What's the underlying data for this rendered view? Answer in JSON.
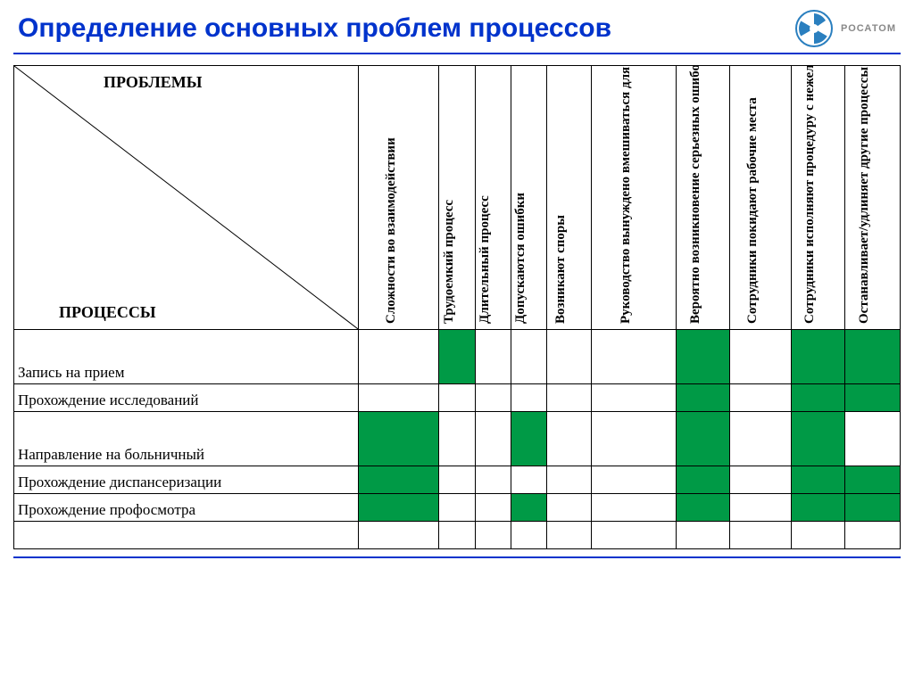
{
  "title": "Определение основных проблем процессов",
  "logo_text": "РОСАТОМ",
  "logo_colors": {
    "ring": "#2a7fbf",
    "blades": "#2a7fbf",
    "center": "#ffffff",
    "bg": "#f0f0f0"
  },
  "corner": {
    "top": "ПРОБЛЕМЫ",
    "bottom": "ПРОЦЕССЫ"
  },
  "columns": [
    {
      "label": "Сложности во взаимодействии"
    },
    {
      "label": "Трудоемкий процесс"
    },
    {
      "label": "Длительный процесс"
    },
    {
      "label": "Допускаются ошибки"
    },
    {
      "label": "Возникают споры"
    },
    {
      "label": "Руководство вынуждено вмешиваться для ускорения"
    },
    {
      "label": "Вероятно возникновение серьезных ошибок"
    },
    {
      "label": "Сотрудники покидают рабочие места"
    },
    {
      "label": "Сотрудники исполняют процедуру с нежеланием"
    },
    {
      "label": "Останавливает/удлиняет другие процессы"
    }
  ],
  "rows": [
    {
      "label": "Запись на прием",
      "tall": true,
      "cells": [
        false,
        true,
        false,
        false,
        false,
        false,
        true,
        false,
        true,
        true
      ]
    },
    {
      "label": "Прохождение исследований",
      "tall": false,
      "cells": [
        false,
        false,
        false,
        false,
        false,
        false,
        true,
        false,
        true,
        true
      ]
    },
    {
      "label": "Направление на больничный",
      "tall": true,
      "cells": [
        true,
        false,
        false,
        true,
        false,
        false,
        true,
        false,
        true,
        false
      ]
    },
    {
      "label": "Прохождение диспансеризации",
      "tall": false,
      "cells": [
        true,
        false,
        false,
        false,
        false,
        false,
        true,
        false,
        true,
        true
      ]
    },
    {
      "label": "Прохождение профосмотра",
      "tall": false,
      "cells": [
        true,
        false,
        false,
        true,
        false,
        false,
        true,
        false,
        true,
        true
      ]
    },
    {
      "label": "",
      "tall": false,
      "cells": [
        false,
        false,
        false,
        false,
        false,
        false,
        false,
        false,
        false,
        false
      ]
    }
  ],
  "colors": {
    "title": "#0033cc",
    "rule": "#0033cc",
    "fill": "#009a46",
    "border": "#000000",
    "bg": "#ffffff"
  }
}
